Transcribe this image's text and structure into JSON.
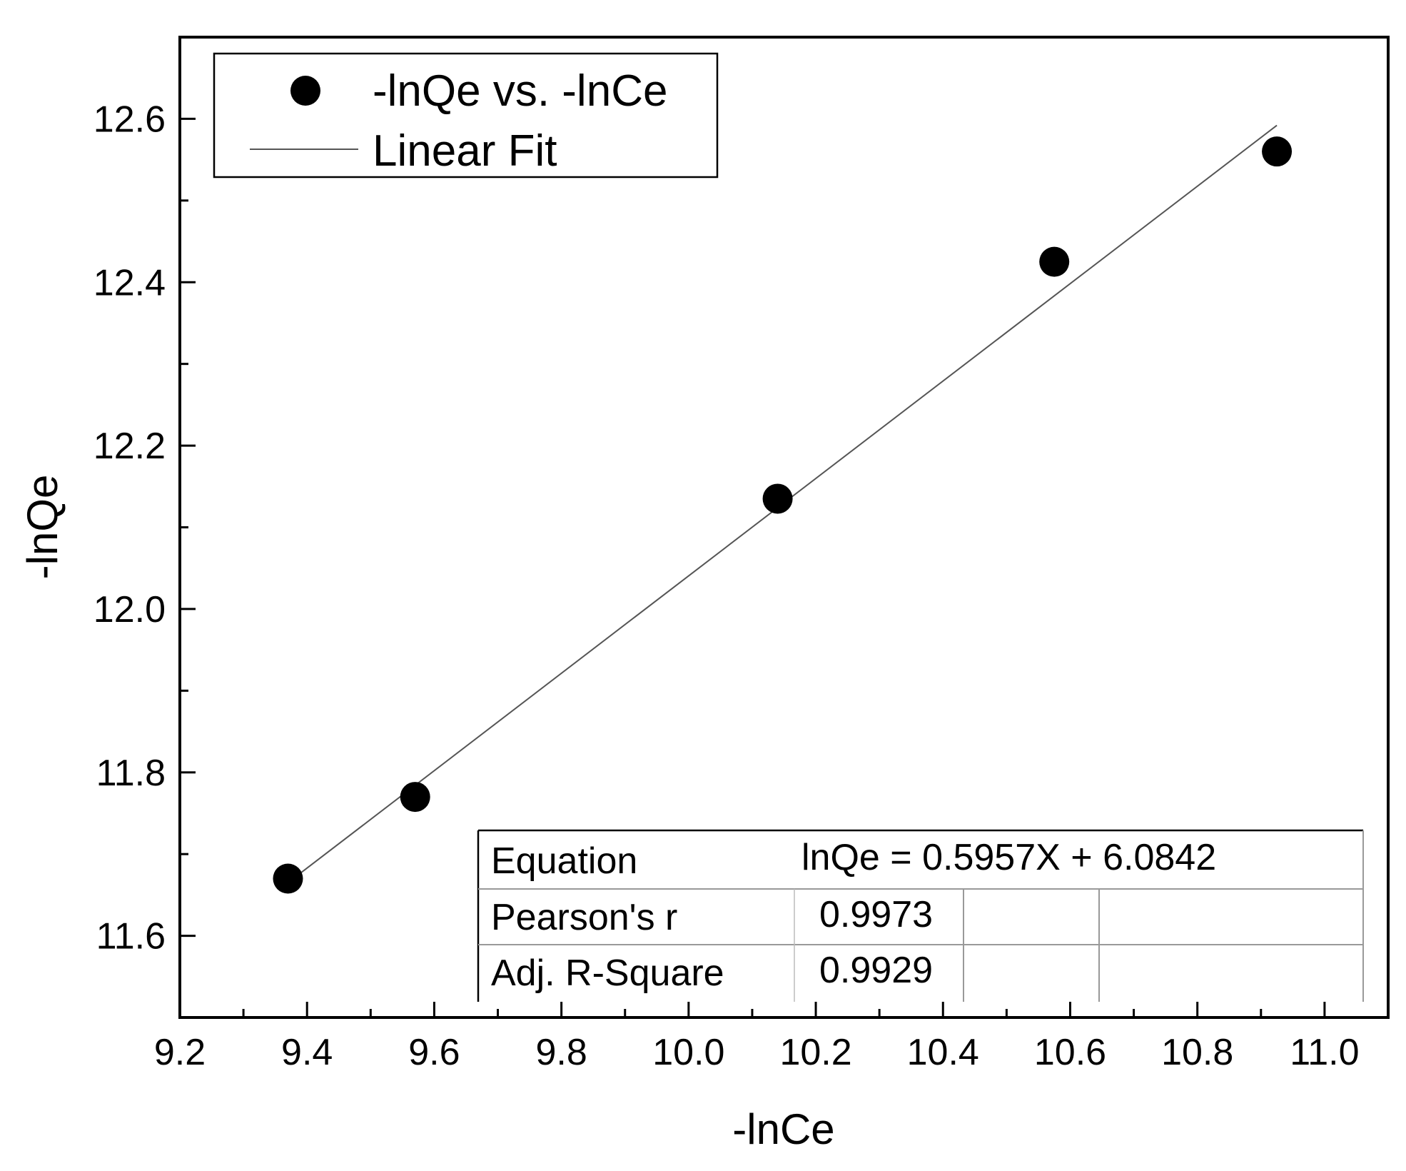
{
  "chart_data": {
    "type": "scatter",
    "xlabel": "-lnCe",
    "ylabel": "-lnQe",
    "xlim": [
      9.2,
      11.1
    ],
    "ylim": [
      11.5,
      12.7
    ],
    "xticks": [
      "9.2",
      "9.4",
      "9.6",
      "9.8",
      "10.0",
      "10.2",
      "10.4",
      "10.6",
      "10.8",
      "11.0"
    ],
    "yticks": [
      "11.6",
      "11.8",
      "12.0",
      "12.2",
      "12.4",
      "12.6"
    ],
    "grid": false,
    "legend_position": "top-left",
    "series": [
      {
        "name": "-lnQe vs. -lnCe",
        "kind": "points",
        "color": "#000000",
        "x": [
          9.37,
          9.57,
          10.14,
          10.575,
          10.925
        ],
        "y": [
          11.67,
          11.77,
          12.135,
          12.425,
          12.56
        ]
      },
      {
        "name": "Linear Fit",
        "kind": "line",
        "color": "#555555",
        "x": [
          9.37,
          10.925
        ],
        "y": [
          11.665,
          12.592
        ]
      }
    ],
    "fit_table": {
      "rows": [
        {
          "label": "Equation",
          "value": "lnQe = 0.5957X + 6.0842"
        },
        {
          "label": "Pearson's r",
          "value": "0.9973"
        },
        {
          "label": "Adj. R-Square",
          "value": "0.9929"
        }
      ]
    }
  }
}
